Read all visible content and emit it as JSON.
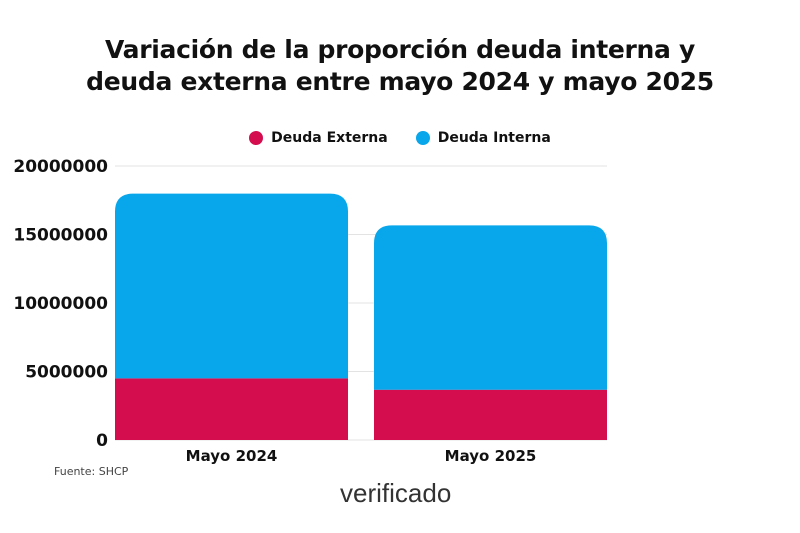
{
  "chart_data": {
    "type": "bar",
    "stacked": true,
    "title": "Variación de la proporción deuda interna y deuda externa entre mayo 2024 y mayo 2025",
    "categories": [
      "Mayo 2024",
      "Mayo 2025"
    ],
    "series": [
      {
        "name": "Deuda Externa",
        "color": "#D40D4F",
        "values": [
          4500000,
          3670000
        ]
      },
      {
        "name": "Deuda Interna",
        "color": "#08A6EA",
        "values": [
          13480000,
          12000000
        ]
      }
    ],
    "ylim": [
      0,
      20000000
    ],
    "yticks": [
      "0",
      "5000000",
      "10000000",
      "15000000",
      "20000000"
    ],
    "grid": true,
    "legend": "top-center",
    "xlabel": "",
    "ylabel": ""
  },
  "source": "Fuente: SHCP",
  "logo": "verificado"
}
